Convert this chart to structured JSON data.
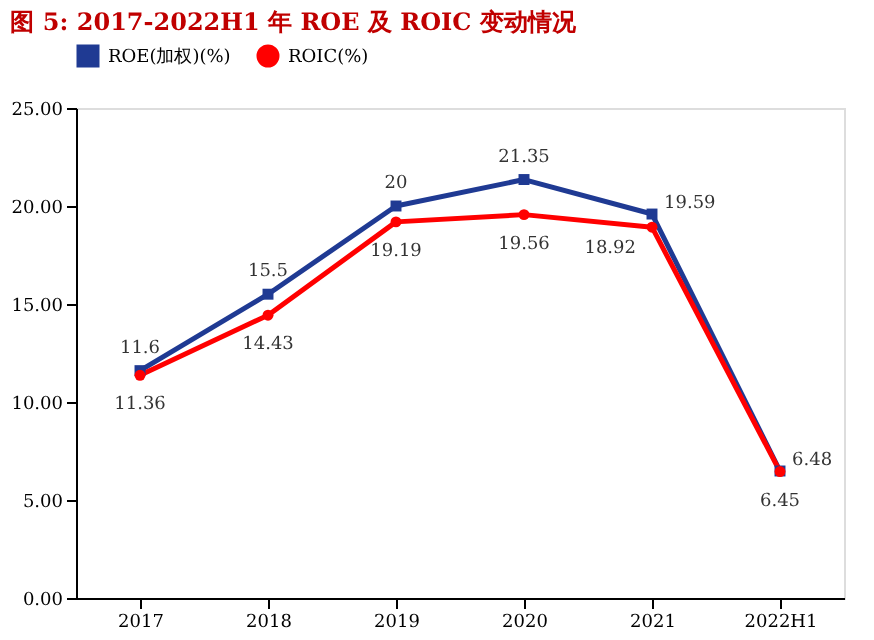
{
  "chart_data": {
    "type": "line",
    "title": "图 5: 2017-2022H1 年 ROE 及 ROIC 变动情况",
    "categories": [
      "2017",
      "2018",
      "2019",
      "2020",
      "2021",
      "2022H1"
    ],
    "series": [
      {
        "name": "ROE(加权)(%)",
        "color": "#1f3a93",
        "marker": "square",
        "values": [
          11.6,
          15.5,
          20,
          21.35,
          19.59,
          6.48
        ]
      },
      {
        "name": "ROIC(%)",
        "color": "#ff0000",
        "marker": "circle",
        "values": [
          11.36,
          14.43,
          19.19,
          19.56,
          18.92,
          6.45
        ]
      }
    ],
    "ylim": [
      0,
      25
    ],
    "yticks": [
      {
        "value": 0,
        "label": "0.00"
      },
      {
        "value": 5,
        "label": "5.00"
      },
      {
        "value": 10,
        "label": "10.00"
      },
      {
        "value": 15,
        "label": "15.00"
      },
      {
        "value": 20,
        "label": "20.00"
      },
      {
        "value": 25,
        "label": "25.00"
      }
    ],
    "data_labels": true,
    "legend": "top",
    "grid": false,
    "line_style": "solid"
  }
}
